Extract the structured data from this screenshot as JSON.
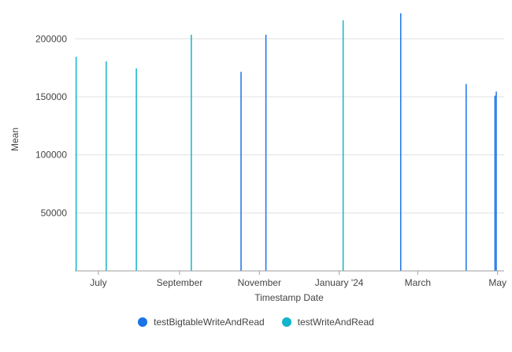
{
  "chart_data": {
    "type": "bar",
    "xlabel": "Timestamp Date",
    "ylabel": "Mean",
    "ylim": [
      0,
      228000
    ],
    "yticks": [
      50000,
      100000,
      150000,
      200000
    ],
    "ytick_labels": [
      "50000",
      "100000",
      "150000",
      "200000"
    ],
    "x_range": [
      "2023-06-13",
      "2024-05-06"
    ],
    "xticks": [
      {
        "date": "2023-07-01",
        "label": "July"
      },
      {
        "date": "2023-09-01",
        "label": "September"
      },
      {
        "date": "2023-11-01",
        "label": "November"
      },
      {
        "date": "2024-01-01",
        "label": "January '24"
      },
      {
        "date": "2024-03-01",
        "label": "March"
      },
      {
        "date": "2024-05-01",
        "label": "May"
      }
    ],
    "grid": true,
    "legend_position": "bottom",
    "series": [
      {
        "name": "testBigtableWriteAndRead",
        "color": "#1a73e8",
        "points": [
          {
            "x": "2023-10-18",
            "y": 171500
          },
          {
            "x": "2023-11-06",
            "y": 203500
          },
          {
            "x": "2024-02-17",
            "y": 222000
          },
          {
            "x": "2024-04-07",
            "y": 161000
          },
          {
            "x": "2024-04-29",
            "y": 151000
          },
          {
            "x": "2024-04-30",
            "y": 154500
          }
        ]
      },
      {
        "name": "testWriteAndRead",
        "color": "#12b5cb",
        "points": [
          {
            "x": "2023-06-14",
            "y": 184500
          },
          {
            "x": "2023-07-07",
            "y": 180500
          },
          {
            "x": "2023-07-30",
            "y": 174500
          },
          {
            "x": "2023-09-10",
            "y": 203500
          },
          {
            "x": "2024-01-04",
            "y": 216000
          }
        ]
      }
    ]
  }
}
